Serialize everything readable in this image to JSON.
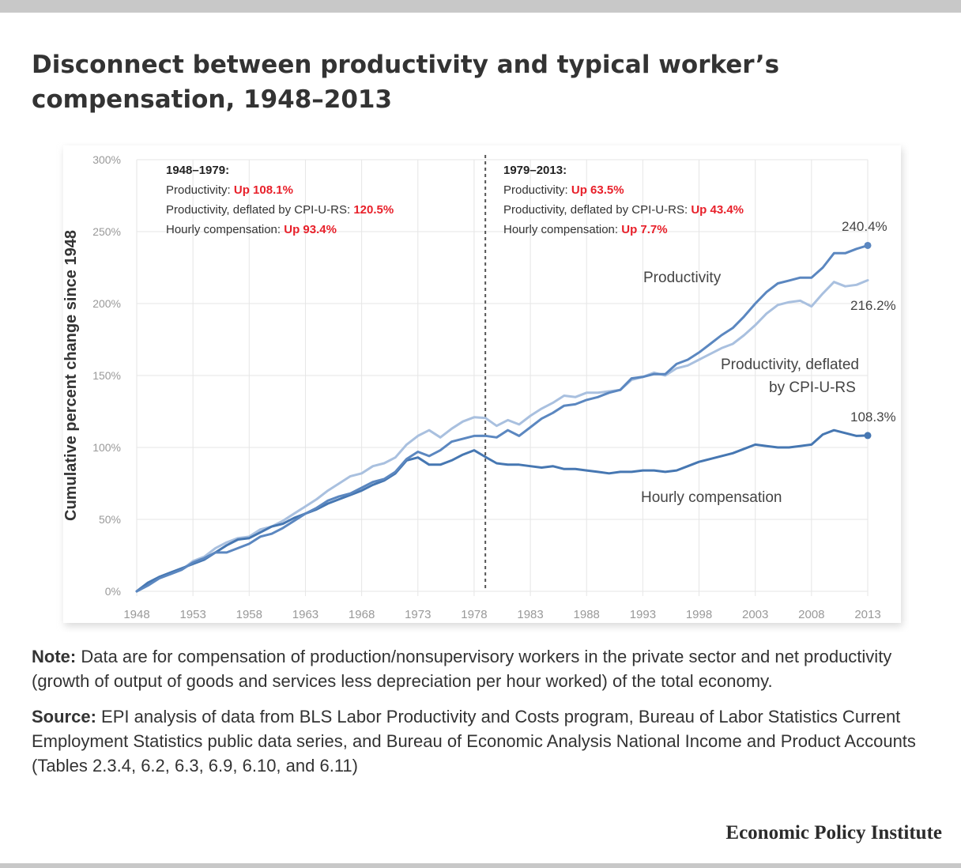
{
  "title": "Disconnect between productivity and typical worker’s compensation, 1948–2013",
  "note": {
    "label": "Note:",
    "text": " Data are for compensation of production/nonsupervisory workers in the private sector and net productivity (growth of output of goods and services less depreciation per hour worked) of the total economy."
  },
  "source": {
    "label": "Source:",
    "text": " EPI analysis of data from BLS Labor Productivity and Costs program, Bureau of Labor Statistics Current Employment Statistics public data series, and Bureau of Economic Analysis National Income and Product Accounts (Tables 2.3.4, 6.2, 6.3, 6.9, 6.10, and 6.11)"
  },
  "brand": "Economic Policy Institute",
  "colors": {
    "productivity": "#5b87c0",
    "productivity_deflated": "#a9c0df",
    "compensation": "#4677b2",
    "highlight": "#e8202a",
    "grid": "#e6e6e6",
    "axis_text": "#999999",
    "label_text": "#444444"
  },
  "chart_data": {
    "type": "line",
    "ylabel": "Cumulative percent change since 1948",
    "ylim": [
      0,
      300
    ],
    "xlim": [
      1948,
      2013
    ],
    "yticks": [
      0,
      50,
      100,
      150,
      200,
      250,
      300
    ],
    "ytick_labels": [
      "0%",
      "50%",
      "100%",
      "150%",
      "200%",
      "250%",
      "300%"
    ],
    "xticks": [
      1948,
      1953,
      1958,
      1963,
      1968,
      1973,
      1978,
      1983,
      1988,
      1993,
      1998,
      2003,
      2008,
      2013
    ],
    "xtick_labels": [
      "1948",
      "1953",
      "1958",
      "1963",
      "1968",
      "1973",
      "1978",
      "1983",
      "1988",
      "1993",
      "1998",
      "2003",
      "2008",
      "2013"
    ],
    "grid": true,
    "divider_year": 1979,
    "series": [
      {
        "name": "Productivity",
        "color_key": "productivity",
        "x": [
          1948,
          1949,
          1950,
          1951,
          1952,
          1953,
          1954,
          1955,
          1956,
          1957,
          1958,
          1959,
          1960,
          1961,
          1962,
          1963,
          1964,
          1965,
          1966,
          1967,
          1968,
          1969,
          1970,
          1971,
          1972,
          1973,
          1974,
          1975,
          1976,
          1977,
          1978,
          1979,
          1980,
          1981,
          1982,
          1983,
          1984,
          1985,
          1986,
          1987,
          1988,
          1989,
          1990,
          1991,
          1992,
          1993,
          1994,
          1995,
          1996,
          1997,
          1998,
          1999,
          2000,
          2001,
          2002,
          2003,
          2004,
          2005,
          2006,
          2007,
          2008,
          2009,
          2010,
          2011,
          2012,
          2013
        ],
        "values": [
          0,
          4,
          9,
          12,
          15,
          20,
          23,
          27,
          27,
          30,
          33,
          38,
          40,
          44,
          49,
          54,
          58,
          63,
          66,
          68,
          72,
          76,
          78,
          83,
          92,
          97,
          94,
          98,
          104,
          106,
          108,
          108.1,
          107,
          112,
          108,
          114,
          120,
          124,
          129,
          130,
          133,
          135,
          138,
          140,
          148,
          149,
          151,
          151,
          158,
          161,
          166,
          172,
          178,
          183,
          191,
          200,
          208,
          214,
          216,
          218,
          218,
          225,
          235,
          235,
          238,
          240.4
        ]
      },
      {
        "name": "Productivity, deflated by CPI-U-RS",
        "color_key": "productivity_deflated",
        "x": [
          1948,
          1949,
          1950,
          1951,
          1952,
          1953,
          1954,
          1955,
          1956,
          1957,
          1958,
          1959,
          1960,
          1961,
          1962,
          1963,
          1964,
          1965,
          1966,
          1967,
          1968,
          1969,
          1970,
          1971,
          1972,
          1973,
          1974,
          1975,
          1976,
          1977,
          1978,
          1979,
          1980,
          1981,
          1982,
          1983,
          1984,
          1985,
          1986,
          1987,
          1988,
          1989,
          1990,
          1991,
          1992,
          1993,
          1994,
          1995,
          1996,
          1997,
          1998,
          1999,
          2000,
          2001,
          2002,
          2003,
          2004,
          2005,
          2006,
          2007,
          2008,
          2009,
          2010,
          2011,
          2012,
          2013
        ],
        "values": [
          0,
          5,
          10,
          12,
          15,
          21,
          24,
          30,
          34,
          37,
          38,
          43,
          45,
          49,
          54,
          59,
          64,
          70,
          75,
          80,
          82,
          87,
          89,
          93,
          102,
          108,
          112,
          107,
          113,
          118,
          121,
          120.5,
          115,
          119,
          116,
          122,
          127,
          131,
          136,
          135,
          138,
          138,
          139,
          140,
          147,
          149,
          152,
          150,
          155,
          157,
          161,
          165,
          169,
          172,
          178,
          185,
          193,
          199,
          201,
          202,
          198,
          207,
          215,
          212,
          213,
          216.2
        ]
      },
      {
        "name": "Hourly compensation",
        "color_key": "compensation",
        "x": [
          1948,
          1949,
          1950,
          1951,
          1952,
          1953,
          1954,
          1955,
          1956,
          1957,
          1958,
          1959,
          1960,
          1961,
          1962,
          1963,
          1964,
          1965,
          1966,
          1967,
          1968,
          1969,
          1970,
          1971,
          1972,
          1973,
          1974,
          1975,
          1976,
          1977,
          1978,
          1979,
          1980,
          1981,
          1982,
          1983,
          1984,
          1985,
          1986,
          1987,
          1988,
          1989,
          1990,
          1991,
          1992,
          1993,
          1994,
          1995,
          1996,
          1997,
          1998,
          1999,
          2000,
          2001,
          2002,
          2003,
          2004,
          2005,
          2006,
          2007,
          2008,
          2009,
          2010,
          2011,
          2012,
          2013
        ],
        "values": [
          0,
          6,
          10,
          13,
          16,
          19,
          22,
          27,
          32,
          36,
          37,
          41,
          45,
          47,
          51,
          54,
          57,
          61,
          64,
          67,
          70,
          74,
          77,
          82,
          91,
          93,
          88,
          88,
          91,
          95,
          98,
          93.4,
          89,
          88,
          88,
          87,
          86,
          87,
          85,
          85,
          84,
          83,
          82,
          83,
          83,
          84,
          84,
          83,
          84,
          87,
          90,
          92,
          94,
          96,
          99,
          102,
          101,
          100,
          100,
          101,
          102,
          109,
          112,
          110,
          108,
          108.3
        ]
      }
    ],
    "line_labels": [
      {
        "text": "Productivity",
        "series": 0
      },
      {
        "text_lines": [
          "Productivity, deflated",
          "by CPI-U-RS"
        ],
        "series": 1
      },
      {
        "text": "Hourly compensation",
        "series": 2
      }
    ],
    "end_labels": [
      "240.4%",
      "216.2%",
      "108.3%"
    ],
    "annotations": [
      {
        "heading": "1948–1979:",
        "lines": [
          {
            "label": "Productivity: ",
            "value": "Up 108.1%"
          },
          {
            "label": "Productivity, deflated by CPI-U-RS: ",
            "value": "120.5%"
          },
          {
            "label": "Hourly compensation: ",
            "value": "Up  93.4%"
          }
        ]
      },
      {
        "heading": "1979–2013:",
        "lines": [
          {
            "label": "Productivity: ",
            "value": "Up 63.5%"
          },
          {
            "label": "Productivity, deflated by CPI-U-RS: ",
            "value": "Up 43.4%"
          },
          {
            "label": "Hourly compensation: ",
            "value": "Up 7.7%"
          }
        ]
      }
    ]
  }
}
